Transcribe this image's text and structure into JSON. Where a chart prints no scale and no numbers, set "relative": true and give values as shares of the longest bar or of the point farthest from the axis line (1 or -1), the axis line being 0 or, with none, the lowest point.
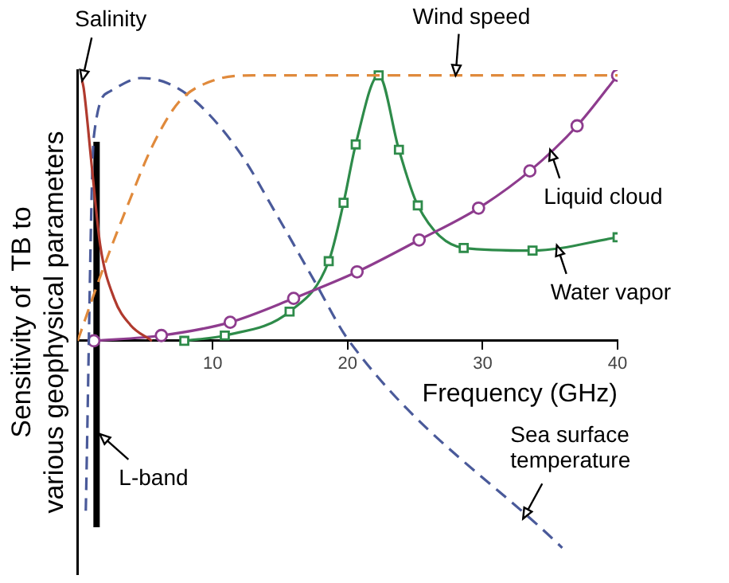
{
  "chart_data": {
    "type": "line",
    "relative": true,
    "xlabel": "Frequency (GHz)",
    "ylabel": "Sensitivity of  TB to various geophysical parameters",
    "xlim": [
      0,
      40
    ],
    "xticks": [
      10,
      20,
      30,
      40
    ],
    "grid": false,
    "legend": false,
    "series": [
      {
        "color": "#b03a2e",
        "marker": "none",
        "line_style": "solid",
        "x": [
          0.33,
          0.45,
          1.06,
          1.67,
          2.7,
          3.9,
          5.5
        ],
        "values": [
          0.98,
          0.95,
          0.65,
          0.36,
          0.16,
          0.06,
          0.0
        ]
      },
      {
        "color": "#e08a3c",
        "marker": "none",
        "line_style": "dashed",
        "x": [
          0,
          1.8,
          3.7,
          5.5,
          7.5,
          10,
          13,
          40
        ],
        "values": [
          0,
          0.26,
          0.51,
          0.73,
          0.9,
          0.98,
          1.0,
          1.0
        ]
      },
      {
        "color": "#4a5a9a",
        "marker": "none",
        "line_style": "dashed",
        "x": [
          0.6,
          1.2,
          2.4,
          4.7,
          6.7,
          8.8,
          12,
          14.8,
          17.6,
          20.1,
          35.9
        ],
        "values": [
          -0.64,
          0.77,
          0.94,
          0.99,
          0.97,
          0.9,
          0.71,
          0.47,
          0.22,
          0,
          -0.78
        ]
      },
      {
        "color": "#8e3c8e",
        "marker": "circle",
        "line_style": "solid",
        "x": [
          1.2,
          6.2,
          11.3,
          16,
          20.7,
          25.3,
          29.7,
          33.5,
          37,
          40
        ],
        "values": [
          0,
          0.02,
          0.07,
          0.16,
          0.26,
          0.38,
          0.5,
          0.64,
          0.81,
          1.0
        ]
      },
      {
        "color": "#2e8b4a",
        "marker": "square",
        "line_style": "solid",
        "x": [
          7.9,
          10.9,
          15.7,
          18.6,
          19.7,
          20.6,
          22.3,
          23.8,
          25.2,
          28.6,
          33.7,
          40
        ],
        "values": [
          0,
          0.02,
          0.11,
          0.3,
          0.52,
          0.74,
          1.0,
          0.72,
          0.51,
          0.35,
          0.34,
          0.39
        ]
      }
    ],
    "ref_lines": [
      {
        "axis": "x",
        "value": 1.4,
        "label": "L-band",
        "color": "#000000"
      }
    ],
    "annotations": [
      {
        "text": "Salinity",
        "x": 0.33,
        "y": 0.98
      },
      {
        "text": "Wind speed",
        "x": 28,
        "y": 1.0
      },
      {
        "text": "Liquid cloud",
        "x": 35,
        "y": 0.72
      },
      {
        "text": "Water vapor",
        "x": 35.5,
        "y": 0.36
      },
      {
        "text": "Sea surface temperature",
        "x": 33,
        "y": -0.67
      }
    ]
  }
}
